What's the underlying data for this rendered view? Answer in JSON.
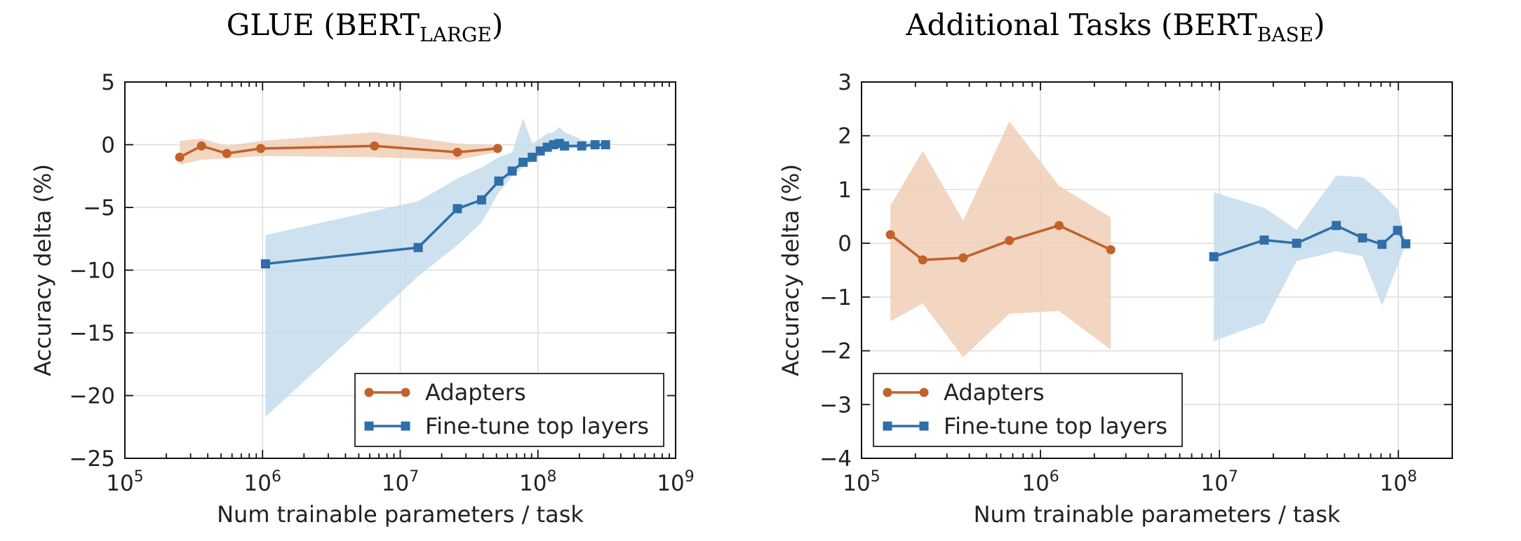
{
  "chart_data": [
    {
      "type": "line",
      "title_main": "GLUE (BERT",
      "title_sub": "LARGE",
      "title_close": ")",
      "xlabel": "Num trainable parameters / task",
      "ylabel": "Accuracy delta (%)",
      "xscale": "log",
      "xlim": [
        100000,
        1000000000
      ],
      "ylim": [
        -25,
        5
      ],
      "xticks": [
        {
          "value": 100000,
          "base": "10",
          "exp": "5"
        },
        {
          "value": 1000000,
          "base": "10",
          "exp": "6"
        },
        {
          "value": 10000000,
          "base": "10",
          "exp": "7"
        },
        {
          "value": 100000000,
          "base": "10",
          "exp": "8"
        },
        {
          "value": 1000000000,
          "base": "10",
          "exp": "9"
        }
      ],
      "yticks": [
        {
          "value": 5,
          "label": "5"
        },
        {
          "value": 0,
          "label": "0"
        },
        {
          "value": -5,
          "label": "−5"
        },
        {
          "value": -10,
          "label": "−10"
        },
        {
          "value": -15,
          "label": "−15"
        },
        {
          "value": -20,
          "label": "−20"
        },
        {
          "value": -25,
          "label": "−25"
        }
      ],
      "grid": true,
      "legend_position": "lower-right",
      "series": [
        {
          "name": "Adapters",
          "color": "#c2612a",
          "band_color": "#f0cfb6",
          "marker": "circle",
          "x": [
            250000,
            360000,
            550000,
            970000,
            6500000,
            26000000,
            51000000
          ],
          "y": [
            -1.0,
            -0.1,
            -0.7,
            -0.3,
            -0.1,
            -0.6,
            -0.3
          ],
          "lower": [
            -1.6,
            -1.2,
            -1.1,
            -0.9,
            -1.0,
            -1.2,
            -0.6
          ],
          "upper": [
            0.3,
            0.5,
            -0.1,
            0.3,
            1.0,
            0.1,
            -0.1
          ]
        },
        {
          "name": "Fine-tune top layers",
          "color": "#2f6ea8",
          "band_color": "#c6dcec",
          "marker": "square",
          "x": [
            1050000,
            13500000,
            26000000,
            39000000,
            52000000,
            65000000,
            78000000,
            91000000,
            104000000,
            117000000,
            130000000,
            143000000,
            156000000,
            208000000,
            260000000,
            310000000
          ],
          "y": [
            -9.5,
            -8.2,
            -5.1,
            -4.4,
            -2.9,
            -2.1,
            -1.4,
            -1.0,
            -0.5,
            -0.2,
            0.0,
            0.1,
            -0.1,
            -0.1,
            0.0,
            0.0
          ],
          "lower": [
            -21.7,
            -10.5,
            -8.0,
            -6.2,
            -3.8,
            -2.5,
            -1.8,
            -1.3,
            -0.8,
            -0.5,
            -0.3,
            -0.2,
            -0.3,
            -0.3,
            -0.2,
            -0.1
          ],
          "upper": [
            -7.2,
            -4.5,
            -2.7,
            -1.8,
            -1.0,
            -0.6,
            2.1,
            0.1,
            0.5,
            0.9,
            1.0,
            1.4,
            1.0,
            0.4,
            0.1,
            0.1
          ]
        }
      ]
    },
    {
      "type": "line",
      "title_main": "Additional Tasks (BERT",
      "title_sub": "BASE",
      "title_close": ")",
      "xlabel": "Num trainable parameters / task",
      "ylabel": "Accuracy delta (%)",
      "xscale": "log",
      "xlim": [
        100000,
        200000000
      ],
      "ylim": [
        -4,
        3
      ],
      "xticks": [
        {
          "value": 100000,
          "base": "10",
          "exp": "5"
        },
        {
          "value": 1000000,
          "base": "10",
          "exp": "6"
        },
        {
          "value": 10000000,
          "base": "10",
          "exp": "7"
        },
        {
          "value": 100000000,
          "base": "10",
          "exp": "8"
        }
      ],
      "yticks": [
        {
          "value": 3,
          "label": "3"
        },
        {
          "value": 2,
          "label": "2"
        },
        {
          "value": 1,
          "label": "1"
        },
        {
          "value": 0,
          "label": "0"
        },
        {
          "value": -1,
          "label": "−1"
        },
        {
          "value": -2,
          "label": "−2"
        },
        {
          "value": -3,
          "label": "−3"
        },
        {
          "value": -4,
          "label": "−4"
        }
      ],
      "grid": true,
      "legend_position": "lower-left",
      "series": [
        {
          "name": "Adapters",
          "color": "#c2612a",
          "band_color": "#f0cfb6",
          "marker": "circle",
          "x": [
            145000,
            220000,
            370000,
            670000,
            1270000,
            2470000
          ],
          "y": [
            0.16,
            -0.31,
            -0.27,
            0.05,
            0.33,
            -0.12
          ],
          "lower": [
            -1.45,
            -1.12,
            -2.12,
            -1.31,
            -1.26,
            -1.98
          ],
          "upper": [
            0.7,
            1.72,
            0.42,
            2.27,
            1.07,
            0.48
          ]
        },
        {
          "name": "Fine-tune top layers",
          "color": "#2f6ea8",
          "band_color": "#c6dcec",
          "marker": "square",
          "x": [
            9300000,
            17800000,
            27000000,
            45000000,
            63000000,
            81000000,
            99000000,
            110000000
          ],
          "y": [
            -0.25,
            0.06,
            0.0,
            0.33,
            0.1,
            -0.02,
            0.24,
            -0.01
          ],
          "lower": [
            -1.82,
            -1.48,
            -0.33,
            -0.15,
            -0.24,
            -1.16,
            -0.42,
            -0.01
          ],
          "upper": [
            0.95,
            0.66,
            0.25,
            1.26,
            1.23,
            0.93,
            0.63,
            -0.01
          ]
        }
      ]
    }
  ]
}
